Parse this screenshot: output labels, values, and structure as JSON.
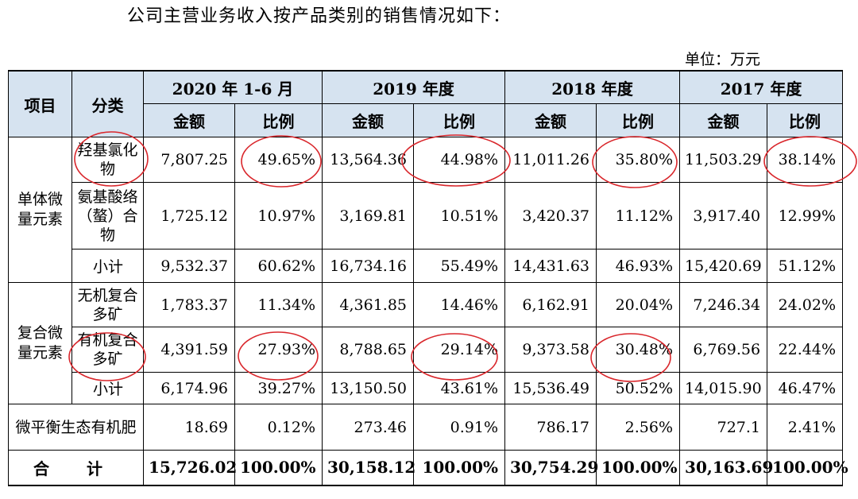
{
  "intro": "公司主营业务收入按产品类别的销售情况如下：",
  "unit": "单位：万元",
  "header": {
    "item": "项目",
    "category": "分类",
    "periods": [
      "2020 年 1-6 月",
      "2019 年度",
      "2018 年度",
      "2017 年度"
    ],
    "amount": "金额",
    "ratio": "比例"
  },
  "groups": {
    "single": "单体微量元素",
    "compound": "复合微量元素"
  },
  "rows": [
    {
      "cat": "羟基氯化物",
      "vals": [
        "7,807.25",
        "49.65%",
        "13,564.36",
        "44.98%",
        "11,011.26",
        "35.80%",
        "11,503.29",
        "38.14%"
      ]
    },
    {
      "cat": "氨基酸络（螯）合物",
      "vals": [
        "1,725.12",
        "10.97%",
        "3,169.81",
        "10.51%",
        "3,420.37",
        "11.12%",
        "3,917.40",
        "12.99%"
      ]
    },
    {
      "cat": "小计",
      "vals": [
        "9,532.37",
        "60.62%",
        "16,734.16",
        "55.49%",
        "14,431.63",
        "46.93%",
        "15,420.69",
        "51.12%"
      ]
    },
    {
      "cat": "无机复合多矿",
      "vals": [
        "1,783.37",
        "11.34%",
        "4,361.85",
        "14.46%",
        "6,162.91",
        "20.04%",
        "7,246.34",
        "24.02%"
      ]
    },
    {
      "cat": "有机复合多矿",
      "vals": [
        "4,391.59",
        "27.93%",
        "8,788.65",
        "29.14%",
        "9,373.58",
        "30.48%",
        "6,769.56",
        "22.44%"
      ]
    },
    {
      "cat": "小计",
      "vals": [
        "6,174.96",
        "39.27%",
        "13,150.50",
        "43.61%",
        "15,536.49",
        "50.52%",
        "14,015.90",
        "46.47%"
      ]
    },
    {
      "cat": "微平衡生态有机肥",
      "vals": [
        "18.69",
        "0.12%",
        "273.46",
        "0.91%",
        "786.17",
        "2.56%",
        "727.1",
        "2.41%"
      ]
    },
    {
      "cat": "合 计",
      "vals": [
        "15,726.02",
        "100.00%",
        "30,158.12",
        "100.00%",
        "30,754.29",
        "100.00%",
        "30,163.69",
        "100.00%"
      ]
    }
  ],
  "annotation_color": "#d9262b"
}
